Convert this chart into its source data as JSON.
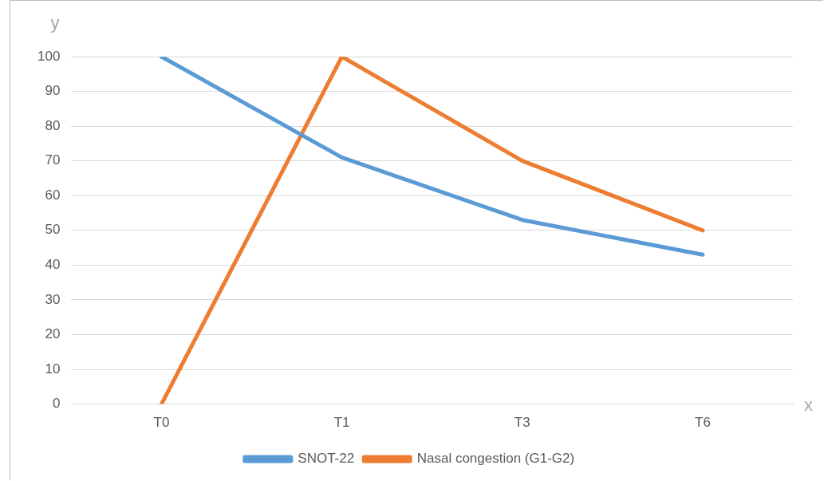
{
  "chart_data": {
    "type": "line",
    "xlabel": "x",
    "ylabel": "y",
    "categories": [
      "T0",
      "T1",
      "T3",
      "T6"
    ],
    "series": [
      {
        "name": "SNOT-22",
        "color": "#5b9bd5",
        "values": [
          100,
          71,
          53,
          43
        ]
      },
      {
        "name": "Nasal congestion (G1-G2)",
        "color": "#ed7d31",
        "values": [
          0,
          100,
          70,
          50
        ]
      }
    ],
    "ylim": [
      0,
      100
    ],
    "yticks": [
      0,
      10,
      20,
      30,
      40,
      50,
      60,
      70,
      80,
      90,
      100
    ],
    "grid": "y",
    "legend": "bottom",
    "marker": "none",
    "line_style": "solid"
  }
}
